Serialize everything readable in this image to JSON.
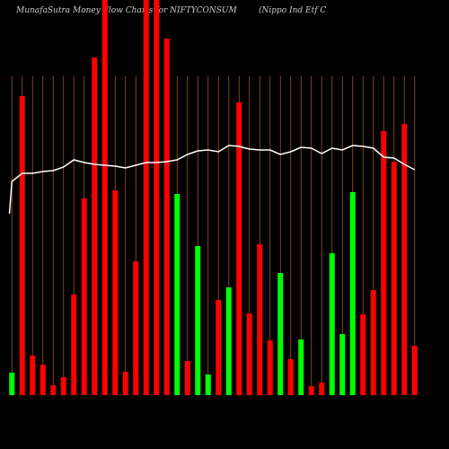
{
  "chart_data": {
    "type": "bar",
    "title": "MunafaSutra  Money Flow  Charts for NIFTYCONSUM",
    "subtitle": "(Nippo  Ind Etf  C",
    "categories": [
      null,
      null,
      null,
      null,
      null,
      null,
      null,
      null,
      null,
      null,
      null,
      null,
      null,
      null,
      null,
      null,
      null,
      null,
      null,
      null,
      null,
      null,
      null,
      null,
      null,
      null,
      null,
      null,
      null,
      null,
      null,
      null,
      null,
      null,
      null,
      null,
      null,
      null,
      null,
      null
    ],
    "values": [
      25,
      333,
      44,
      34,
      11,
      20,
      112,
      219,
      376,
      440,
      228,
      26,
      149,
      440,
      440,
      397,
      224,
      38,
      166,
      23,
      106,
      120,
      326,
      91,
      168,
      61,
      136,
      40,
      62,
      10,
      14,
      158,
      68,
      226,
      90,
      117,
      294,
      260,
      302,
      55
    ],
    "colors": [
      "#00ff00",
      "#ff0000",
      "#ff0000",
      "#ff0000",
      "#ff0000",
      "#ff0000",
      "#ff0000",
      "#ff0000",
      "#ff0000",
      "#ff0000",
      "#ff0000",
      "#ff0000",
      "#ff0000",
      "#ff0000",
      "#ff0000",
      "#ff0000",
      "#00ff00",
      "#ff0000",
      "#00ff00",
      "#00ff00",
      "#ff0000",
      "#00ff00",
      "#ff0000",
      "#ff0000",
      "#ff0000",
      "#ff0000",
      "#00ff00",
      "#ff0000",
      "#00ff00",
      "#ff0000",
      "#ff0000",
      "#00ff00",
      "#00ff00",
      "#00ff00",
      "#ff0000",
      "#ff0000",
      "#ff0000",
      "#ff0000",
      "#ff0000",
      "#ff0000"
    ],
    "line_values": [
      238,
      247,
      247,
      249,
      250,
      254,
      262,
      259,
      257,
      256,
      255,
      253,
      256,
      259,
      259,
      260,
      262,
      268,
      272,
      273,
      271,
      278,
      277,
      274,
      273,
      273,
      268,
      271,
      276,
      275,
      269,
      275,
      273,
      278,
      277,
      275,
      265,
      264,
      257,
      251
    ],
    "line_color": "#ffffff",
    "grid_color": "#a0522d",
    "ylim": [
      0,
      440
    ]
  }
}
